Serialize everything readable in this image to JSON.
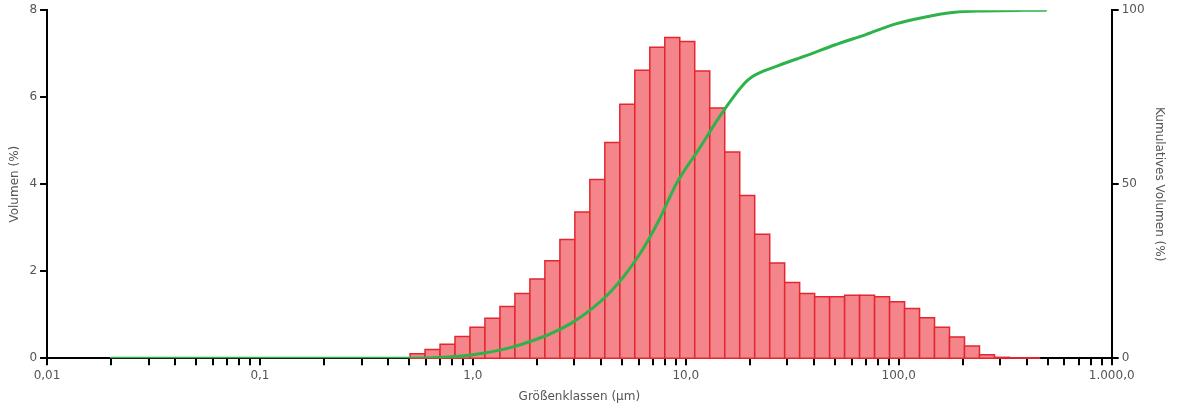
{
  "chart_data": {
    "type": "histogram",
    "xlabel": "Größenklassen (µm)",
    "ylabel": "Volumen (%)",
    "y2label": "Kumulatives Volumen (%)",
    "log": "x",
    "grid": false,
    "legend": false,
    "marker": "none",
    "xlim": [
      0.01,
      1000
    ],
    "xticks": [
      {
        "value": 0.01,
        "label": "0,01"
      },
      {
        "value": 0.02,
        "label": null
      },
      {
        "value": 0.03,
        "label": null
      },
      {
        "value": 0.04,
        "label": null
      },
      {
        "value": 0.05,
        "label": null
      },
      {
        "value": 0.06,
        "label": null
      },
      {
        "value": 0.07,
        "label": null
      },
      {
        "value": 0.08,
        "label": null
      },
      {
        "value": 0.09,
        "label": null
      },
      {
        "value": 0.1,
        "label": "0,1"
      },
      {
        "value": 0.2,
        "label": null
      },
      {
        "value": 0.3,
        "label": null
      },
      {
        "value": 0.4,
        "label": null
      },
      {
        "value": 0.5,
        "label": null
      },
      {
        "value": 0.6,
        "label": null
      },
      {
        "value": 0.7,
        "label": null
      },
      {
        "value": 0.8,
        "label": null
      },
      {
        "value": 0.9,
        "label": null
      },
      {
        "value": 1,
        "label": "1,0"
      },
      {
        "value": 2,
        "label": null
      },
      {
        "value": 3,
        "label": null
      },
      {
        "value": 4,
        "label": null
      },
      {
        "value": 5,
        "label": null
      },
      {
        "value": 6,
        "label": null
      },
      {
        "value": 7,
        "label": null
      },
      {
        "value": 8,
        "label": null
      },
      {
        "value": 9,
        "label": null
      },
      {
        "value": 10,
        "label": "10,0"
      },
      {
        "value": 20,
        "label": null
      },
      {
        "value": 30,
        "label": null
      },
      {
        "value": 40,
        "label": null
      },
      {
        "value": 50,
        "label": null
      },
      {
        "value": 60,
        "label": null
      },
      {
        "value": 70,
        "label": null
      },
      {
        "value": 80,
        "label": null
      },
      {
        "value": 90,
        "label": null
      },
      {
        "value": 100,
        "label": "100,0"
      },
      {
        "value": 200,
        "label": null
      },
      {
        "value": 300,
        "label": null
      },
      {
        "value": 400,
        "label": null
      },
      {
        "value": 500,
        "label": null
      },
      {
        "value": 600,
        "label": null
      },
      {
        "value": 700,
        "label": null
      },
      {
        "value": 800,
        "label": null
      },
      {
        "value": 900,
        "label": null
      },
      {
        "value": 1000,
        "label": "1.000,0"
      }
    ],
    "ylim": [
      0,
      8
    ],
    "yticks": [
      0,
      2,
      4,
      6,
      8
    ],
    "y2lim": [
      0,
      100
    ],
    "y2ticks": [
      0,
      50,
      100
    ],
    "series": [
      {
        "color": "#f4868b",
        "bins": [
          0.507,
          0.596,
          0.701,
          0.824,
          0.969,
          1.139,
          1.34,
          1.575,
          1.852,
          2.178,
          2.562,
          3.012,
          3.542,
          4.165,
          4.898,
          5.76,
          6.773,
          7.965,
          9.365,
          11.01,
          12.95,
          15.23,
          17.91,
          21.06,
          24.77,
          29.12,
          34.24,
          40.27,
          47.35,
          55.68,
          65.48,
          77.0,
          90.55,
          106.5,
          125.2,
          147.2,
          173.1,
          203.6,
          239.4,
          281.5,
          331.1,
          389.3,
          457.8
        ],
        "values": [
          0.1,
          0.2,
          0.32,
          0.5,
          0.71,
          0.92,
          1.19,
          1.49,
          1.82,
          2.24,
          2.73,
          3.36,
          4.11,
          4.96,
          5.84,
          6.62,
          7.15,
          7.37,
          7.28,
          6.6,
          5.75,
          4.74,
          3.74,
          2.85,
          2.19,
          1.74,
          1.49,
          1.41,
          1.41,
          1.45,
          1.45,
          1.41,
          1.3,
          1.14,
          0.93,
          0.71,
          0.49,
          0.28,
          0.08,
          0.02,
          0.01,
          0.01
        ]
      },
      {
        "type": "line",
        "axis": "y2",
        "color": "#2eb24a",
        "x": [
          0.02,
          0.5,
          1.0,
          1.7,
          2.89,
          4.42,
          6.09,
          7.53,
          9.0,
          11.5,
          15,
          19.6,
          27,
          37,
          50,
          70,
          96,
          132,
          183,
          250,
          490
        ],
        "values": [
          0,
          0,
          1,
          4,
          10,
          19,
          30,
          40,
          50,
          60,
          71,
          80,
          84,
          87,
          90,
          93,
          96,
          98,
          99.4,
          99.8,
          100
        ]
      }
    ]
  }
}
